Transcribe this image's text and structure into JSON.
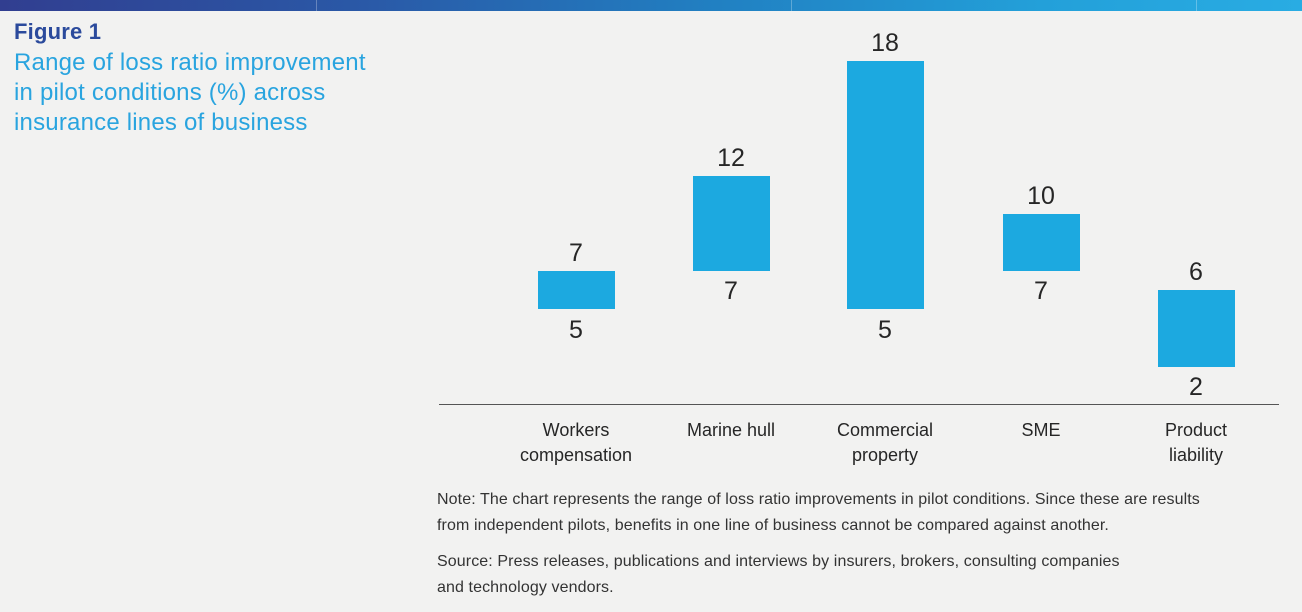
{
  "header": {
    "figure_label": "Figure 1",
    "title_lines": [
      "Range of loss ratio improvement",
      "in pilot conditions (%) across",
      "insurance lines of business"
    ]
  },
  "chart_data": {
    "type": "bar",
    "subtype": "floating-range-columns",
    "title": "Range of loss ratio improvement in pilot conditions (%) across insurance lines of business",
    "unit": "%",
    "categories": [
      "Workers compensation",
      "Marine hull",
      "Commercial property",
      "SME",
      "Product liability"
    ],
    "ranges": [
      {
        "category": "Workers compensation",
        "label_lines": [
          "Workers",
          "compensation"
        ],
        "min": 5,
        "max": 7
      },
      {
        "category": "Marine hull",
        "label_lines": [
          "Marine hull"
        ],
        "min": 7,
        "max": 12
      },
      {
        "category": "Commercial property",
        "label_lines": [
          "Commercial",
          "property"
        ],
        "min": 5,
        "max": 18
      },
      {
        "category": "SME",
        "label_lines": [
          "SME"
        ],
        "min": 7,
        "max": 10
      },
      {
        "category": "Product liability",
        "label_lines": [
          "Product",
          "liability"
        ],
        "min": 2,
        "max": 6
      }
    ],
    "ylim": [
      0,
      19
    ],
    "grid": false,
    "legend": false,
    "value_labels": "max above bar, min below bar",
    "bar_color": "#1CA9E0"
  },
  "notes": {
    "note_lines": [
      "Note: The chart represents the range of loss ratio improvements in pilot conditions. Since these are results",
      "from independent pilots, benefits in one line of business cannot be compared against another."
    ],
    "source_lines": [
      "Source: Press releases, publications and interviews by insurers, brokers, consulting companies",
      "and technology vendors."
    ]
  },
  "colors": {
    "background": "#F2F2F1",
    "bar": "#1CA9E0",
    "figure_label": "#2B4A9C",
    "figure_title": "#29A4DF",
    "axis_line": "#555555",
    "body_text": "#333333",
    "topbar_gradient": [
      "#313E90",
      "#2A59A7",
      "#2180C2",
      "#29ACE3"
    ]
  }
}
